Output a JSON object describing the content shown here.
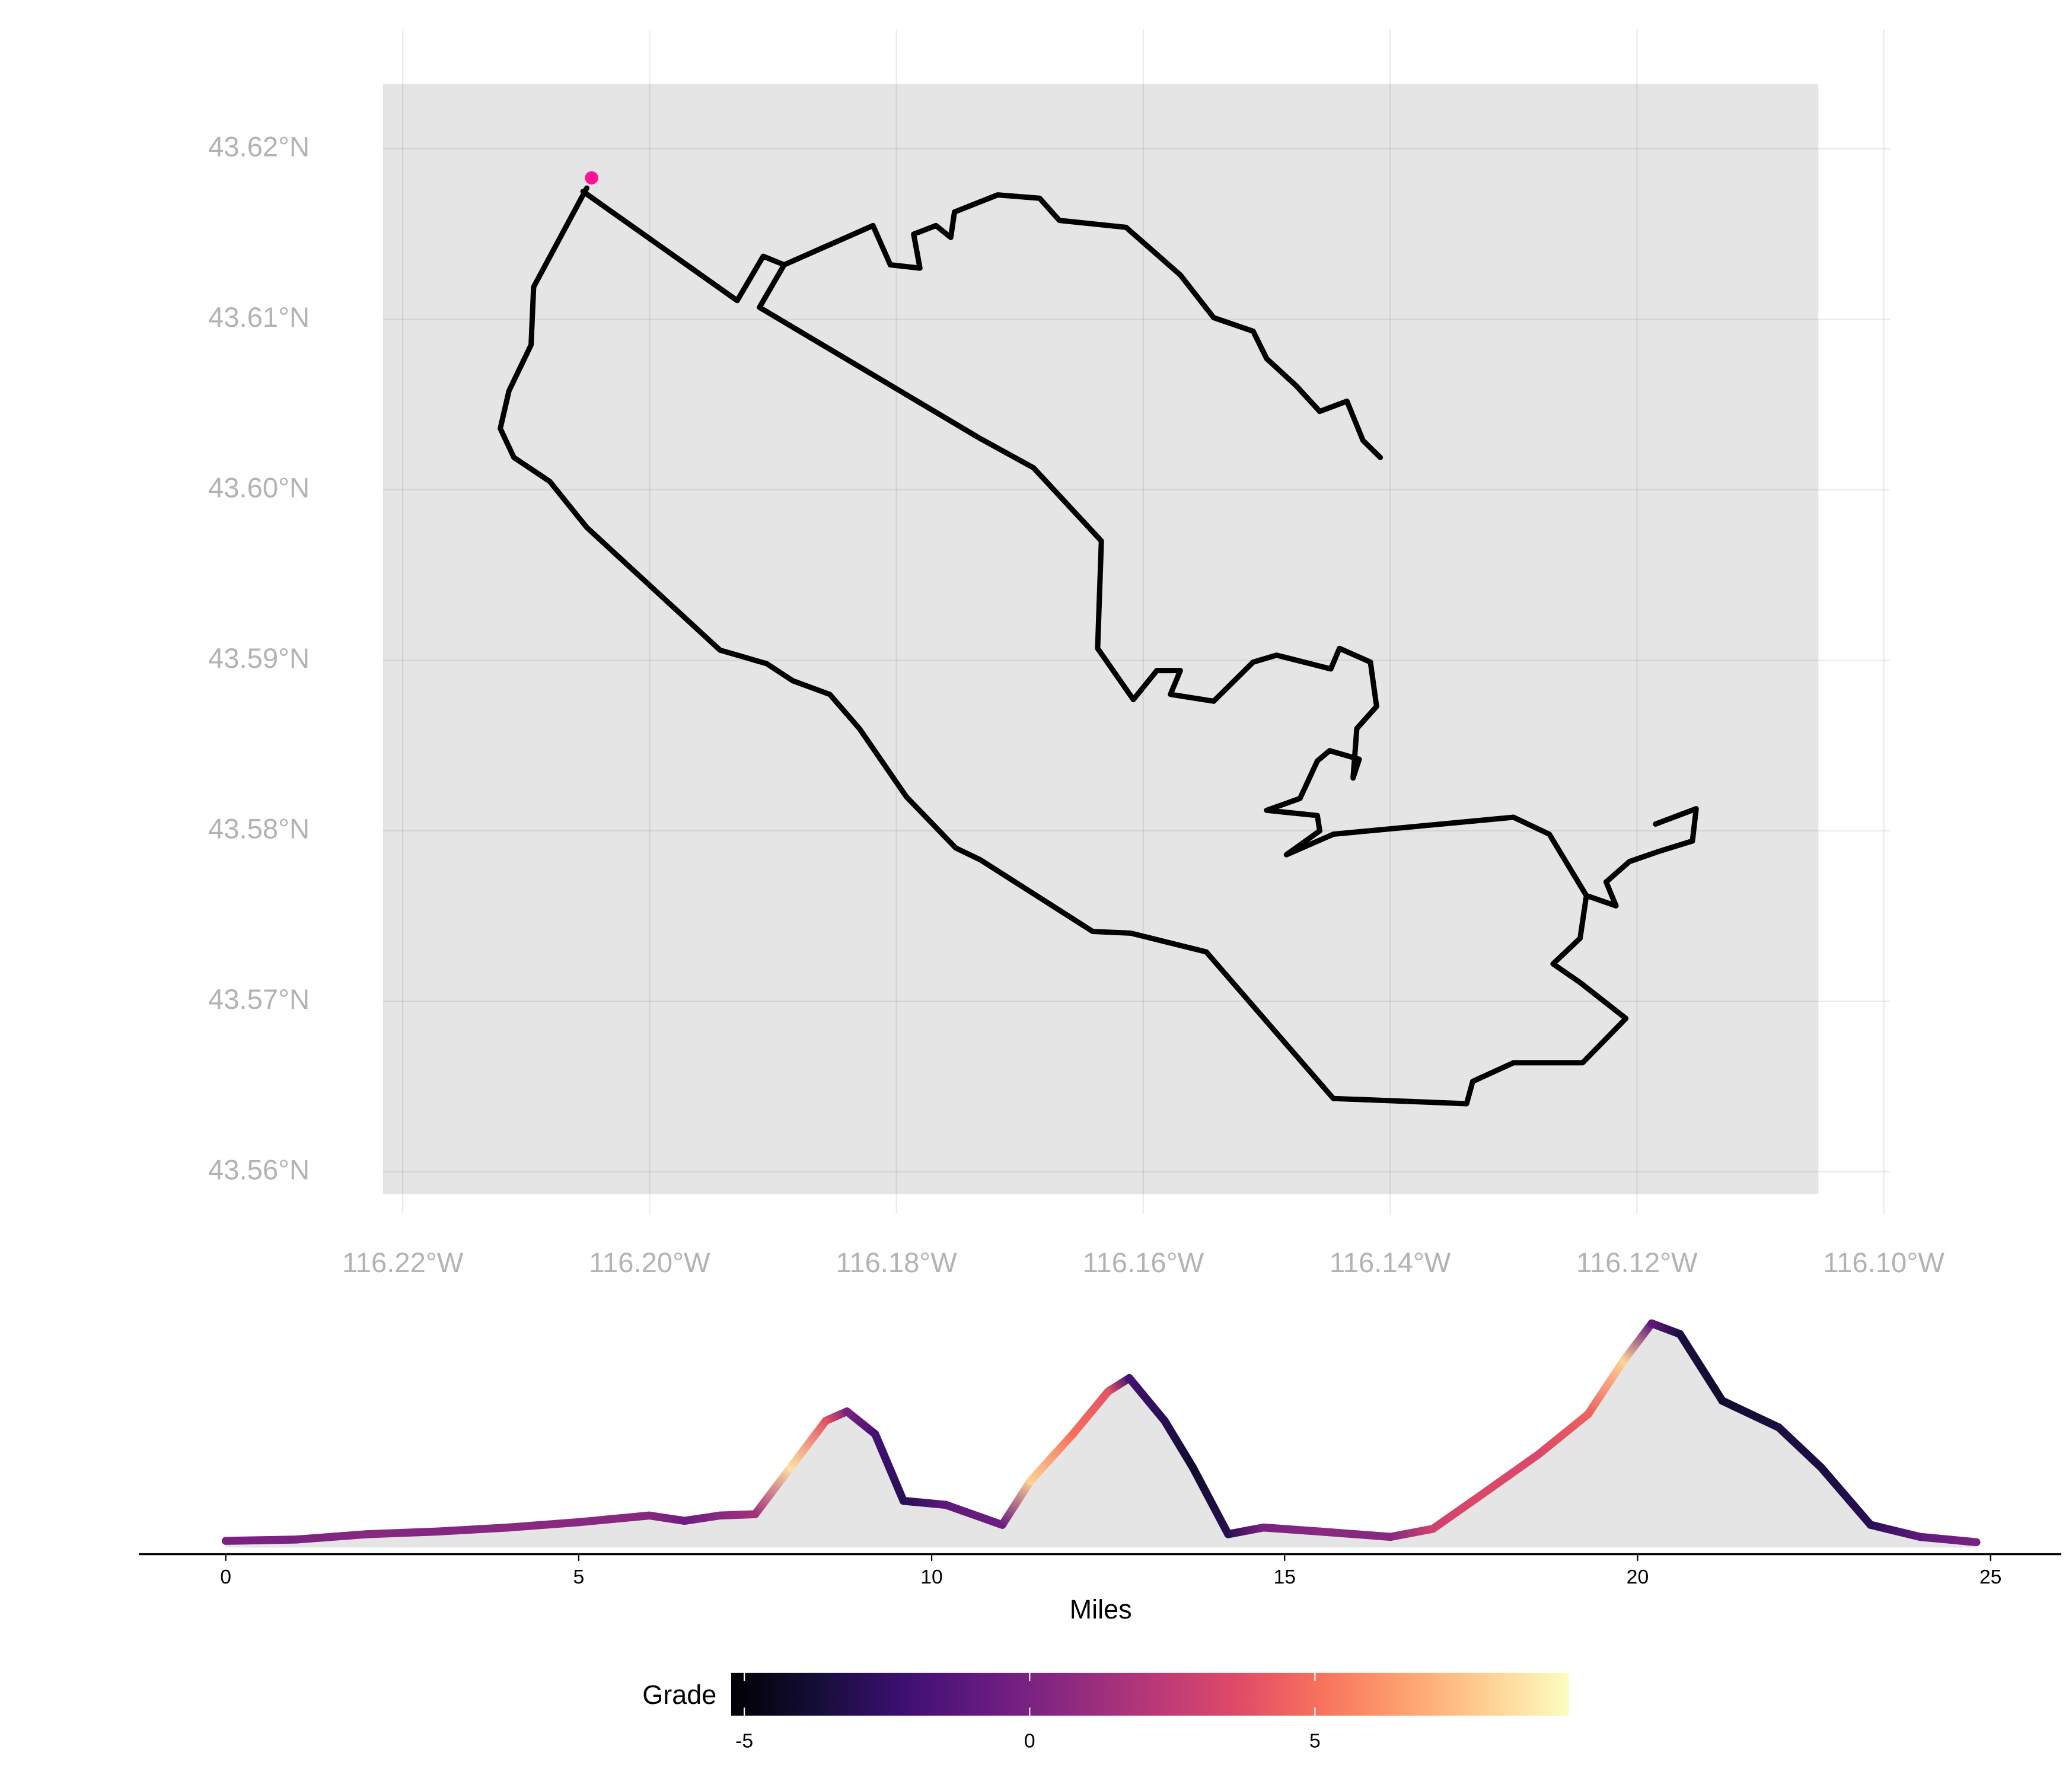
{
  "chart_data": [
    {
      "type": "route",
      "xlim": [
        -116.2216,
        -116.1053
      ],
      "ylim": [
        43.5587,
        43.6238
      ],
      "grid": true,
      "xticks": [
        {
          "value": -116.22,
          "label": "116.22°W"
        },
        {
          "value": -116.2,
          "label": "116.20°W"
        },
        {
          "value": -116.18,
          "label": "116.18°W"
        },
        {
          "value": -116.16,
          "label": "116.16°W"
        },
        {
          "value": -116.14,
          "label": "116.14°W"
        },
        {
          "value": -116.12,
          "label": "116.12°W"
        },
        {
          "value": -116.1,
          "label": "116.10°W"
        }
      ],
      "yticks": [
        {
          "value": 43.56,
          "label": "43.56°N"
        },
        {
          "value": 43.57,
          "label": "43.57°N"
        },
        {
          "value": 43.58,
          "label": "43.58°N"
        },
        {
          "value": 43.59,
          "label": "43.59°N"
        },
        {
          "value": 43.6,
          "label": "43.60°N"
        },
        {
          "value": 43.61,
          "label": "43.61°N"
        },
        {
          "value": 43.62,
          "label": "43.62°N"
        }
      ],
      "series": [
        {
          "color": "#000000",
          "lon": [
            -116.2051,
            -116.2094,
            -116.2096,
            -116.2114,
            -116.2121,
            -116.211,
            -116.2081,
            -116.2051,
            -116.1943,
            -116.1905,
            -116.1884,
            -116.1854,
            -116.183,
            -116.1792,
            -116.1752,
            -116.1732,
            -116.1641,
            -116.161,
            -116.1549,
            -116.1446,
            -116.1338,
            -116.1333,
            -116.13,
            -116.1244,
            -116.1209,
            -116.1246,
            -116.1268,
            -116.1246,
            -116.1241,
            -116.1217,
            -116.1225,
            -116.1206,
            -116.1182,
            -116.1155,
            -116.1152,
            -116.1185,
            null,
            -116.1241,
            -116.1271,
            -116.13,
            -116.1446,
            -116.1484,
            -116.1457,
            -116.1459,
            -116.15,
            -116.1473,
            -116.1459,
            -116.1449,
            -116.1425,
            -116.143,
            -116.1427,
            -116.1411,
            -116.1416,
            -116.1441,
            -116.1448,
            -116.1492,
            -116.1511,
            -116.1543,
            -116.1578,
            -116.157,
            -116.1589,
            -116.1608,
            -116.1637,
            -116.1634,
            -116.1689,
            -116.1732,
            -116.1911,
            -116.1891,
            -116.1908,
            -116.1929,
            -116.2054,
            null,
            -116.1891,
            -116.1819,
            -116.1805,
            -116.1781,
            -116.1786,
            -116.1768,
            -116.1756,
            -116.1753,
            -116.1718,
            -116.1684,
            -116.1668,
            -116.1614,
            -116.157,
            -116.1543,
            -116.1511,
            -116.15,
            -116.1476,
            -116.1457,
            -116.1435,
            -116.1422,
            -116.1408
          ],
          "lat": [
            43.6177,
            43.6119,
            43.6085,
            43.6058,
            43.6036,
            43.6019,
            43.6005,
            43.5978,
            43.5906,
            43.5898,
            43.5888,
            43.588,
            43.586,
            43.582,
            43.579,
            43.5783,
            43.5741,
            43.574,
            43.5729,
            43.5643,
            43.564,
            43.5653,
            43.5664,
            43.5664,
            43.569,
            43.5711,
            43.5722,
            43.5737,
            43.5762,
            43.5756,
            43.577,
            43.5782,
            43.5788,
            43.5794,
            43.5813,
            43.5804,
            null,
            43.5762,
            43.5798,
            43.5808,
            43.5798,
            43.5786,
            43.58,
            43.5809,
            43.5812,
            43.5819,
            43.5841,
            43.5847,
            43.5842,
            43.5831,
            43.586,
            43.5873,
            43.5899,
            43.5907,
            43.5895,
            43.5903,
            43.5899,
            43.5876,
            43.588,
            43.5894,
            43.5894,
            43.5877,
            43.5907,
            43.597,
            43.6013,
            43.603,
            43.6107,
            43.6132,
            43.6137,
            43.6111,
            43.6175,
            null,
            43.6132,
            43.6155,
            43.6132,
            43.613,
            43.615,
            43.6155,
            43.6148,
            43.6163,
            43.6173,
            43.6171,
            43.6158,
            43.6154,
            43.6126,
            43.6101,
            43.6093,
            43.6077,
            43.6061,
            43.6046,
            43.6052,
            43.6029,
            43.6019
          ]
        }
      ],
      "start": {
        "color": "#ff1493",
        "lon": -116.2047,
        "lat": 43.6183
      }
    },
    {
      "type": "line",
      "x_label": "Miles",
      "xlim": [
        -1.23,
        26.0
      ],
      "xticks": [
        0,
        5,
        10,
        15,
        20,
        25
      ],
      "ylim": [
        0,
        170
      ],
      "fill": "#e5e5e5",
      "x": [
        0,
        1,
        2,
        3,
        4,
        5,
        6,
        6.5,
        7,
        7.5,
        8,
        8.5,
        8.8,
        9.2,
        9.6,
        10.2,
        11,
        11.4,
        12,
        12.5,
        12.8,
        13.3,
        13.7,
        14.2,
        14.7,
        15.5,
        16.5,
        17.1,
        17.8,
        18.6,
        19.3,
        19.8,
        20.2,
        20.6,
        21.2,
        22,
        22.6,
        23.3,
        24,
        24.8
      ],
      "series": [
        {
          "values": [
            5,
            6,
            10,
            12,
            15,
            19,
            24,
            20,
            24,
            25,
            60,
            95,
            102,
            85,
            35,
            32,
            17,
            50,
            85,
            117,
            127,
            95,
            60,
            10,
            15,
            12,
            8,
            14,
            40,
            70,
            100,
            140,
            168,
            160,
            110,
            90,
            60,
            17,
            8,
            4
          ],
          "grade": [
            0,
            0,
            0.5,
            0.3,
            0.5,
            0.5,
            0.5,
            -0.5,
            0.5,
            1.5,
            8.5,
            4,
            0,
            -2,
            -3,
            -1,
            -0.5,
            8,
            5,
            4,
            -2,
            -3,
            -4,
            -3,
            0,
            0.5,
            0.5,
            3,
            3.5,
            3.5,
            4.5,
            8,
            -1,
            -3.5,
            -4,
            -3.5,
            -3.5,
            -3,
            -1,
            0
          ]
        }
      ],
      "color_scale": {
        "title": "Grade",
        "colormap": "magma",
        "lim": [
          -5.23,
          9.45
        ],
        "ticks": [
          -5,
          0,
          5
        ]
      }
    }
  ]
}
